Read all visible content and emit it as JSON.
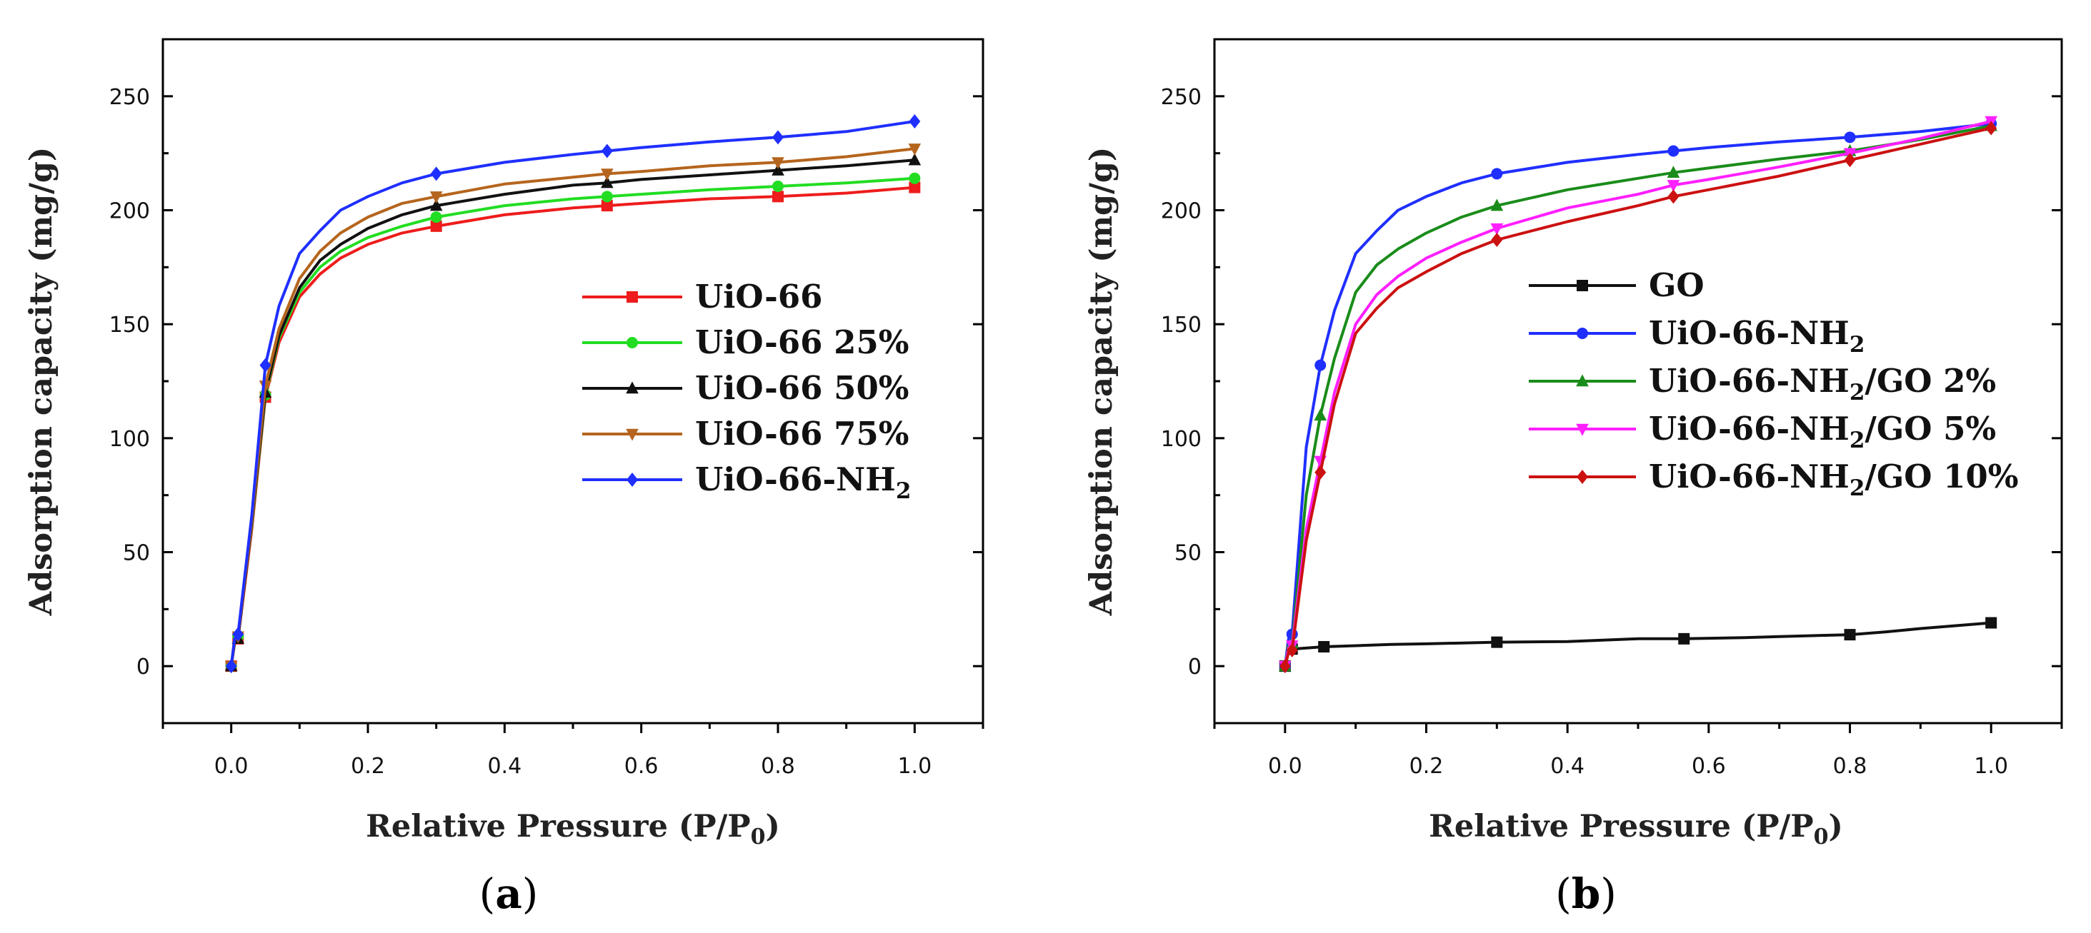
{
  "chart_data": [
    {
      "panel": "a",
      "type": "line",
      "caption": "a",
      "xlabel_main": "Relative Pressure (P/P",
      "xlabel_sub": "0",
      "xlabel_end": ")",
      "ylabel": "Adsorption capacity (mg/g)",
      "xlim": [
        -0.1,
        1.1
      ],
      "ylim": [
        -25,
        275
      ],
      "xticks": [
        0.0,
        0.2,
        0.4,
        0.6,
        0.8,
        1.0
      ],
      "xtick_labels": [
        "0.0",
        "0.2",
        "0.4",
        "0.6",
        "0.8",
        "1.0"
      ],
      "yticks": [
        0,
        50,
        100,
        150,
        200,
        250
      ],
      "ytick_labels": [
        "0",
        "50",
        "100",
        "150",
        "200",
        "250"
      ],
      "legend_position": "center-right",
      "series": [
        {
          "name": "UiO-66",
          "sub": "",
          "suffix": "",
          "color": "#ee1c1c",
          "marker": "square",
          "x": [
            0.0,
            0.005,
            0.01,
            0.03,
            0.05,
            0.07,
            0.1,
            0.13,
            0.16,
            0.2,
            0.25,
            0.3,
            0.4,
            0.5,
            0.55,
            0.6,
            0.7,
            0.8,
            0.9,
            1.0
          ],
          "y": [
            0,
            10,
            12,
            60,
            118,
            142,
            162,
            172,
            179,
            185,
            190,
            193,
            198,
            201,
            202,
            203,
            205,
            206,
            207.5,
            210
          ],
          "marked": [
            0,
            2,
            4,
            11,
            14,
            17,
            19
          ]
        },
        {
          "name": "UiO-66 25%",
          "sub": "",
          "suffix": "",
          "color": "#22dd22",
          "marker": "circle",
          "x": [
            0.0,
            0.005,
            0.01,
            0.03,
            0.05,
            0.07,
            0.1,
            0.13,
            0.16,
            0.2,
            0.25,
            0.3,
            0.4,
            0.5,
            0.55,
            0.6,
            0.7,
            0.8,
            0.9,
            1.0
          ],
          "y": [
            0,
            11,
            13,
            62,
            119,
            144,
            164,
            175,
            182,
            188,
            193,
            197,
            202,
            205,
            206,
            207,
            209,
            210.5,
            212,
            214
          ],
          "marked": [
            0,
            2,
            4,
            11,
            14,
            17,
            19
          ]
        },
        {
          "name": "UiO-66 50%",
          "sub": "",
          "suffix": "",
          "color": "#111111",
          "marker": "triangle-up",
          "x": [
            0.0,
            0.005,
            0.01,
            0.03,
            0.05,
            0.07,
            0.1,
            0.13,
            0.16,
            0.2,
            0.25,
            0.3,
            0.4,
            0.5,
            0.55,
            0.6,
            0.7,
            0.8,
            0.9,
            1.0
          ],
          "y": [
            0,
            11,
            12,
            63,
            120,
            145,
            166,
            178,
            185,
            192,
            198,
            202,
            207,
            211,
            212,
            213.5,
            215.5,
            217.5,
            219.5,
            222
          ],
          "marked": [
            0,
            2,
            4,
            11,
            14,
            17,
            19
          ]
        },
        {
          "name": "UiO-66 75%",
          "sub": "",
          "suffix": "",
          "color": "#b5651d",
          "marker": "triangle-down",
          "x": [
            0.0,
            0.005,
            0.01,
            0.03,
            0.05,
            0.07,
            0.1,
            0.13,
            0.16,
            0.2,
            0.25,
            0.3,
            0.4,
            0.5,
            0.55,
            0.6,
            0.7,
            0.8,
            0.9,
            1.0
          ],
          "y": [
            0,
            12,
            13,
            64,
            123,
            148,
            170,
            182,
            190,
            197,
            203,
            206,
            211.5,
            214.5,
            216,
            217,
            219.5,
            221,
            223.5,
            227
          ],
          "marked": [
            0,
            2,
            4,
            11,
            14,
            17,
            19
          ]
        },
        {
          "name": "UiO-66-NH",
          "sub": "2",
          "suffix": "",
          "color": "#1f2fff",
          "marker": "diamond",
          "x": [
            0.0,
            0.005,
            0.01,
            0.03,
            0.05,
            0.07,
            0.1,
            0.13,
            0.16,
            0.2,
            0.25,
            0.3,
            0.4,
            0.5,
            0.55,
            0.6,
            0.7,
            0.8,
            0.9,
            1.0
          ],
          "y": [
            0,
            12,
            14,
            66,
            132,
            158,
            181,
            191,
            200,
            206,
            212,
            216,
            221,
            224.5,
            226,
            227.5,
            230,
            232,
            234.5,
            239
          ],
          "marked": [
            0,
            2,
            4,
            11,
            14,
            17,
            19
          ]
        }
      ]
    },
    {
      "panel": "b",
      "type": "line",
      "caption": "b",
      "xlabel_main": "Relative Pressure (P/P",
      "xlabel_sub": "0",
      "xlabel_end": ")",
      "ylabel": "Adsorption capacity (mg/g)",
      "xlim": [
        -0.1,
        1.1
      ],
      "ylim": [
        -25,
        275
      ],
      "xticks": [
        0.0,
        0.2,
        0.4,
        0.6,
        0.8,
        1.0
      ],
      "xtick_labels": [
        "0.0",
        "0.2",
        "0.4",
        "0.6",
        "0.8",
        "1.0"
      ],
      "yticks": [
        0,
        50,
        100,
        150,
        200,
        250
      ],
      "ytick_labels": [
        "0",
        "50",
        "100",
        "150",
        "200",
        "250"
      ],
      "legend_position": "center-right",
      "series": [
        {
          "name": "GO",
          "sub": "",
          "suffix": "",
          "color": "#111111",
          "marker": "square",
          "x": [
            0.0,
            0.005,
            0.01,
            0.055,
            0.15,
            0.2,
            0.3,
            0.4,
            0.5,
            0.565,
            0.65,
            0.7,
            0.8,
            0.85,
            0.9,
            1.0
          ],
          "y": [
            0,
            7,
            7.5,
            8.5,
            9.5,
            9.8,
            10.5,
            10.8,
            12,
            12,
            12.5,
            13,
            13.8,
            15,
            16.5,
            19
          ],
          "marked": [
            0,
            2,
            3,
            6,
            9,
            12,
            15
          ]
        },
        {
          "name": "UiO-66-NH",
          "sub": "2",
          "suffix": "",
          "color": "#1f2fff",
          "marker": "circle",
          "x": [
            0.0,
            0.005,
            0.01,
            0.03,
            0.05,
            0.07,
            0.1,
            0.13,
            0.16,
            0.2,
            0.25,
            0.3,
            0.4,
            0.5,
            0.55,
            0.6,
            0.7,
            0.8,
            0.9,
            1.0
          ],
          "y": [
            0,
            12,
            14,
            96,
            132,
            156,
            181,
            191,
            200,
            206,
            212,
            216,
            221,
            224.5,
            226,
            227.5,
            230,
            232,
            234.5,
            238
          ],
          "marked": [
            0,
            2,
            4,
            11,
            14,
            17,
            19
          ]
        },
        {
          "name": "UiO-66-NH",
          "sub": "2",
          "suffix": "/GO 2%",
          "color": "#1a8c1a",
          "marker": "triangle-up",
          "x": [
            0.0,
            0.005,
            0.01,
            0.03,
            0.05,
            0.07,
            0.1,
            0.13,
            0.16,
            0.2,
            0.25,
            0.3,
            0.4,
            0.5,
            0.55,
            0.6,
            0.7,
            0.8,
            0.9,
            1.0
          ],
          "y": [
            0,
            9,
            10,
            75,
            110,
            135,
            164,
            176,
            183,
            190,
            197,
            202,
            209,
            214,
            216.5,
            218.5,
            222.5,
            226,
            231,
            237
          ],
          "marked": [
            0,
            2,
            4,
            11,
            14,
            17,
            19
          ]
        },
        {
          "name": "UiO-66-NH",
          "sub": "2",
          "suffix": "/GO 5%",
          "color": "#ff1fff",
          "marker": "triangle-down",
          "x": [
            0.0,
            0.005,
            0.01,
            0.03,
            0.05,
            0.07,
            0.1,
            0.13,
            0.16,
            0.2,
            0.25,
            0.3,
            0.4,
            0.5,
            0.55,
            0.6,
            0.7,
            0.8,
            0.9,
            1.0
          ],
          "y": [
            0,
            8,
            9,
            60,
            90,
            120,
            150,
            163,
            171,
            179,
            186,
            192,
            201,
            207,
            211,
            213.5,
            219,
            225,
            231.5,
            239
          ],
          "marked": [
            0,
            2,
            4,
            11,
            14,
            17,
            19
          ]
        },
        {
          "name": "UiO-66-NH",
          "sub": "2",
          "suffix": "/GO 10%",
          "color": "#cc1111",
          "marker": "diamond",
          "x": [
            0.0,
            0.005,
            0.01,
            0.03,
            0.05,
            0.07,
            0.1,
            0.13,
            0.16,
            0.2,
            0.25,
            0.3,
            0.4,
            0.5,
            0.55,
            0.6,
            0.7,
            0.8,
            0.9,
            1.0
          ],
          "y": [
            0,
            6,
            7,
            55,
            85,
            115,
            146,
            157,
            166,
            173,
            181,
            187,
            195,
            202,
            206,
            209,
            215,
            222,
            229,
            236
          ],
          "marked": [
            0,
            2,
            4,
            11,
            14,
            17,
            19
          ]
        }
      ]
    }
  ]
}
